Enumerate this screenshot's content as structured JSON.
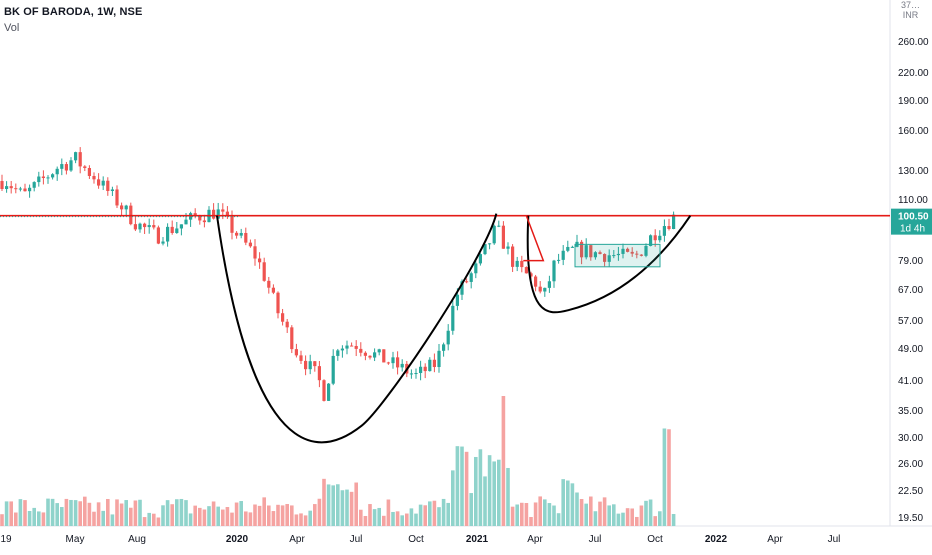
{
  "header": {
    "symbol_title": "BK OF BARODA, 1W, NSE",
    "volume_label": "Vol"
  },
  "price_axis": {
    "unit_top": "37…",
    "currency": "INR",
    "tick_labels": [
      "260.00",
      "220.00",
      "190.00",
      "160.00",
      "130.00",
      "110.00",
      "79.00",
      "67.00",
      "57.00",
      "49.00",
      "41.00",
      "35.00",
      "30.00",
      "26.00",
      "22.50",
      "19.50"
    ],
    "last_price_label": "100.50",
    "countdown_label": "1d 4h"
  },
  "time_axis": {
    "tick_labels": [
      "19",
      "May",
      "Aug",
      "2020",
      "Apr",
      "Jul",
      "Oct",
      "2021",
      "Apr",
      "Jul",
      "Oct",
      "2022",
      "Apr",
      "Jul"
    ]
  },
  "colors": {
    "up": "#26a69a",
    "down": "#ef5350",
    "volume_up": "#8fd3cb",
    "volume_down": "#f5a3a1",
    "resistance_line": "#e41b17",
    "pattern_curve": "#000000",
    "price_tag_bg": "#26a69a",
    "axis_text": "#131722"
  },
  "chart_data": {
    "type": "candlestick",
    "scale": "log",
    "title": "BK OF BARODA, 1W, NSE",
    "timeframe": "1W",
    "series": [
      {
        "name": "price",
        "anchor_points": [
          {
            "date": "2019-01",
            "close": 122
          },
          {
            "date": "2019-02",
            "close": 112
          },
          {
            "date": "2019-04",
            "close": 132
          },
          {
            "date": "2019-05",
            "close": 138
          },
          {
            "date": "2019-06",
            "close": 124
          },
          {
            "date": "2019-08",
            "close": 96
          },
          {
            "date": "2019-09",
            "close": 90
          },
          {
            "date": "2019-11",
            "close": 100
          },
          {
            "date": "2019-12",
            "close": 103
          },
          {
            "date": "2020-02",
            "close": 80
          },
          {
            "date": "2020-03",
            "close": 60
          },
          {
            "date": "2020-04",
            "close": 48
          },
          {
            "date": "2020-05",
            "close": 42
          },
          {
            "date": "2020-05",
            "close": 38
          },
          {
            "date": "2020-06",
            "close": 50
          },
          {
            "date": "2020-07",
            "close": 50
          },
          {
            "date": "2020-08",
            "close": 47
          },
          {
            "date": "2020-10",
            "close": 42
          },
          {
            "date": "2020-11",
            "close": 45
          },
          {
            "date": "2020-12",
            "close": 65
          },
          {
            "date": "2021-01",
            "close": 76
          },
          {
            "date": "2021-02",
            "close": 94
          },
          {
            "date": "2021-03",
            "close": 76
          },
          {
            "date": "2021-04",
            "close": 70
          },
          {
            "date": "2021-04",
            "close": 63
          },
          {
            "date": "2021-05",
            "close": 78
          },
          {
            "date": "2021-06",
            "close": 84
          },
          {
            "date": "2021-07",
            "close": 82
          },
          {
            "date": "2021-09",
            "close": 80
          },
          {
            "date": "2021-10",
            "close": 92
          },
          {
            "date": "2021-11",
            "close": 100.5
          }
        ]
      }
    ],
    "volume_series": {
      "name": "Vol",
      "note": "weekly volume histogram in lower pane; spikes near 2021-02 and 2021-10"
    },
    "annotations": [
      {
        "kind": "horizontal_line",
        "label": "resistance",
        "price": 100.5,
        "color": "#e41b17"
      },
      {
        "kind": "curve",
        "label": "cup",
        "from": "2019-12",
        "to": "2021-02",
        "bottom_price": 32
      },
      {
        "kind": "curve",
        "label": "handle",
        "from": "2021-02",
        "to": "2021-11",
        "bottom_price": 60
      },
      {
        "kind": "rectangle",
        "label": "consolidation box",
        "from": "2021-05",
        "to": "2021-10",
        "price_range": [
          76,
          86
        ]
      }
    ],
    "last_price": 100.5,
    "xlabel": "",
    "ylabel": "",
    "grid": false,
    "legend": "none"
  }
}
